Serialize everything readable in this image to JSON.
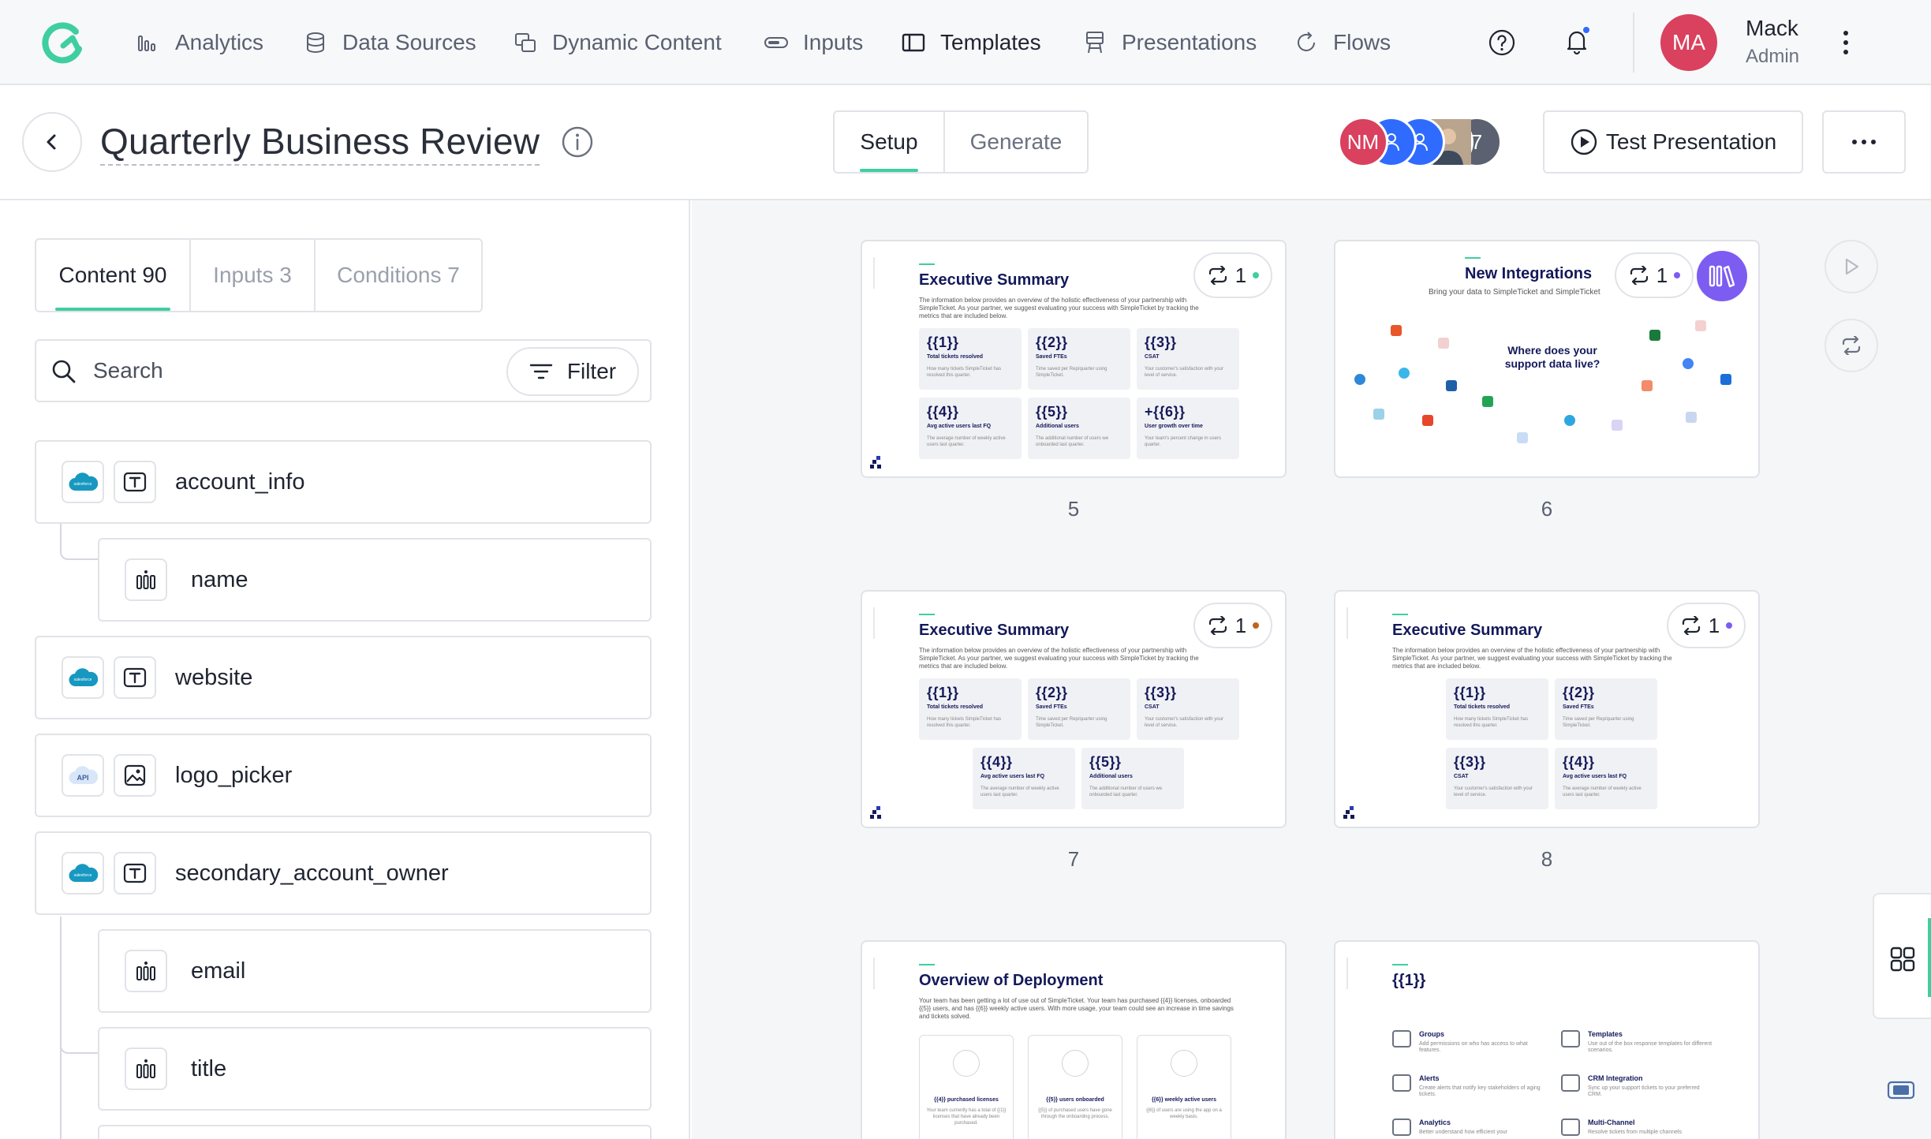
{
  "nav": {
    "items": [
      {
        "label": "Analytics",
        "icon": "bar-chart-icon"
      },
      {
        "label": "Data Sources",
        "icon": "database-icon"
      },
      {
        "label": "Dynamic Content",
        "icon": "copy-icon"
      },
      {
        "label": "Inputs",
        "icon": "input-pill-icon"
      },
      {
        "label": "Templates",
        "icon": "template-icon"
      },
      {
        "label": "Presentations",
        "icon": "easel-icon"
      },
      {
        "label": "Flows",
        "icon": "refresh-icon"
      }
    ],
    "active": "Templates",
    "user": {
      "initials": "MA",
      "name": "Mack",
      "role": "Admin"
    }
  },
  "header": {
    "title": "Quarterly Business Review",
    "tabs": [
      {
        "label": "Setup"
      },
      {
        "label": "Generate"
      }
    ],
    "active_tab": "Setup",
    "collaborators": [
      {
        "initials": "NM",
        "color": "#d9415e"
      },
      {
        "initials": "",
        "color": "#2f6bff"
      },
      {
        "initials": "",
        "color": "#2f6bff"
      },
      {
        "initials": "",
        "color": "#8b8f98"
      },
      {
        "initials": "7",
        "color": "#5b6170"
      }
    ],
    "test_button": "Test Presentation"
  },
  "left": {
    "tabs": [
      {
        "label": "Content 90"
      },
      {
        "label": "Inputs 3"
      },
      {
        "label": "Conditions 7"
      }
    ],
    "search_placeholder": "Search",
    "filter_label": "Filter",
    "fields": [
      {
        "label": "account_info",
        "source": "salesforce",
        "type": "text"
      },
      {
        "label": "name",
        "source": "",
        "type": "column"
      },
      {
        "label": "website",
        "source": "salesforce",
        "type": "text"
      },
      {
        "label": "logo_picker",
        "source": "api",
        "type": "image"
      },
      {
        "label": "secondary_account_owner",
        "source": "salesforce",
        "type": "text"
      },
      {
        "label": "email",
        "source": "",
        "type": "column"
      },
      {
        "label": "title",
        "source": "",
        "type": "column"
      }
    ],
    "api_badge": "API"
  },
  "slides": [
    {
      "number": "5",
      "title": "Executive Summary",
      "subtitle": "The information below provides an overview of the holistic effectiveness of your partnership with SimpleTicket. As your partner, we suggest evaluating your success with SimpleTicket by tracking the metrics that are included below.",
      "loop_count": "1",
      "loop_dot": "#3fcf9f",
      "tiles": [
        {
          "v": "{{1}}",
          "l": "Total tickets resolved",
          "d": "How many tickets SimpleTicket has resolved this quarter."
        },
        {
          "v": "{{2}}",
          "l": "Saved FTEs",
          "d": "Time saved per Rep/quarter using SimpleTicket."
        },
        {
          "v": "{{3}}",
          "l": "CSAT",
          "d": "Your customer's satisfaction with your level of service."
        },
        {
          "v": "{{4}}",
          "l": "Avg active users last FQ",
          "d": "The average number of weekly active users last quarter."
        },
        {
          "v": "{{5}}",
          "l": "Additional users",
          "d": "The additional number of users we onboarded last quarter."
        },
        {
          "v": "+{{6}}",
          "l": "User growth over time",
          "d": "Your team's percent change in users quarter."
        }
      ]
    },
    {
      "number": "6",
      "title": "New Integrations",
      "subtitle": "Bring your data to SimpleTicket and SimpleTicket",
      "question": "Where does your support data live?",
      "loop_count": "1",
      "loop_dot": "#7d5cf2",
      "logo_tile": "library-icon"
    },
    {
      "number": "7",
      "title": "Executive Summary",
      "subtitle": "The information below provides an overview of the holistic effectiveness of your partnership with SimpleTicket. As your partner, we suggest evaluating your success with SimpleTicket by tracking the metrics that are included below.",
      "loop_count": "1",
      "loop_dot": "#c0641c",
      "tiles": [
        {
          "v": "{{1}}",
          "l": "Total tickets resolved",
          "d": "How many tickets SimpleTicket has resolved this quarter."
        },
        {
          "v": "{{2}}",
          "l": "Saved FTEs",
          "d": "Time saved per Rep/quarter using SimpleTicket."
        },
        {
          "v": "{{3}}",
          "l": "CSAT",
          "d": "Your customer's satisfaction with your level of service."
        },
        {
          "v": "{{4}}",
          "l": "Avg active users last FQ",
          "d": "The average number of weekly active users last quarter."
        },
        {
          "v": "{{5}}",
          "l": "Additional users",
          "d": "The additional number of users we onboarded last quarter."
        }
      ]
    },
    {
      "number": "8",
      "title": "Executive Summary",
      "subtitle": "The information below provides an overview of the holistic effectiveness of your partnership with SimpleTicket. As your partner, we suggest evaluating your success with SimpleTicket by tracking the metrics that are included below.",
      "loop_count": "1",
      "loop_dot": "#7d5cf2",
      "tiles": [
        {
          "v": "{{1}}",
          "l": "Total tickets resolved",
          "d": "How many tickets SimpleTicket has resolved this quarter."
        },
        {
          "v": "{{2}}",
          "l": "Saved FTEs",
          "d": "Time saved per Rep/quarter using SimpleTicket."
        },
        {
          "v": "{{3}}",
          "l": "CSAT",
          "d": "Your customer's satisfaction with your level of service."
        },
        {
          "v": "{{4}}",
          "l": "Avg active users last FQ",
          "d": "The average number of weekly active users last quarter."
        }
      ]
    },
    {
      "title": "Overview of Deployment",
      "subtitle": "Your team has been getting a lot of use out of SimpleTicket. Your team has purchased {{4}} licenses, onboarded {{5}} users, and has {{6}} weekly active users. With more usage, your team could see an increase in time savings and tickets solved.",
      "tiles": [
        {
          "l": "{{4}} purchased licenses",
          "d": "Your team currently has a total of {{1}} licenses that have already been purchased."
        },
        {
          "l": "{{5}} users onboarded",
          "d": "{{5}} of purchased users have gone through the onboarding process."
        },
        {
          "l": "{{6}} weekly active users",
          "d": "{{6}} of users are using the app on a weekly basis."
        }
      ]
    },
    {
      "title": "{{1}}",
      "features": [
        {
          "l": "Groups",
          "d": "Add permissions on who has access to what features."
        },
        {
          "l": "Templates",
          "d": "Use out of the box response templates for different scenarios."
        },
        {
          "l": "Alerts",
          "d": "Create alerts that notify key stakeholders of aging tickets."
        },
        {
          "l": "CRM Integration",
          "d": "Sync up your support tickets to your preferred CRM."
        },
        {
          "l": "Analytics",
          "d": "Better understand how efficient your"
        },
        {
          "l": "Multi-Channel",
          "d": "Resolve tickets from multiple channels"
        }
      ]
    }
  ]
}
